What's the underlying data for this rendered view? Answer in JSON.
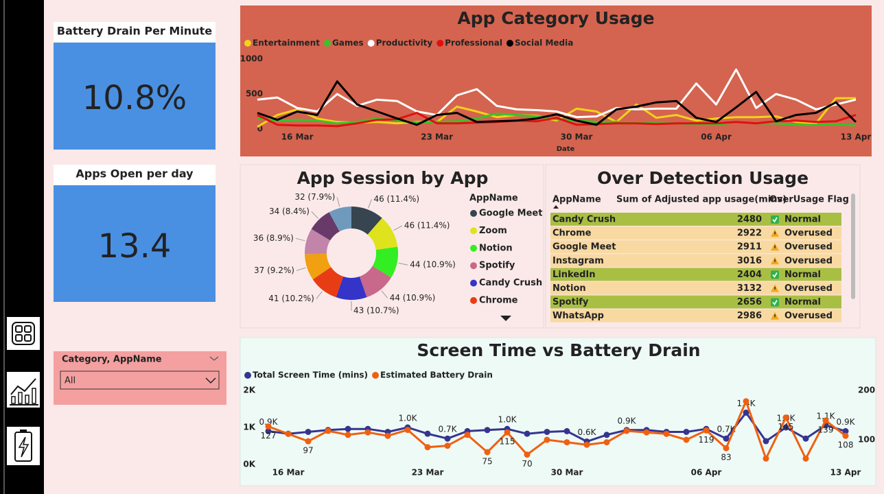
{
  "cards": [
    {
      "title": "Battery Drain Per Minute",
      "value": "10.8%"
    },
    {
      "title": "Apps Open per day",
      "value": "13.4"
    }
  ],
  "slicer": {
    "title": "Category, AppName",
    "selected": "All"
  },
  "table": {
    "title": "Over Detection Usage",
    "columns": [
      "AppName",
      "Sum of Adjusted app usage(mins)",
      "OverUsage Flag"
    ],
    "rows": [
      [
        "Candy Crush",
        "2480",
        "Normal"
      ],
      [
        "Chrome",
        "2922",
        "Overused"
      ],
      [
        "Google Meet",
        "2911",
        "Overused"
      ],
      [
        "Instagram",
        "3016",
        "Overused"
      ],
      [
        "LinkedIn",
        "2404",
        "Normal"
      ],
      [
        "Notion",
        "3132",
        "Overused"
      ],
      [
        "Spotify",
        "2656",
        "Normal"
      ],
      [
        "WhatsApp",
        "2986",
        "Overused"
      ]
    ]
  },
  "chart_data": [
    {
      "type": "line",
      "title": "App Category Usage",
      "x_label": "Date",
      "legend": "top-left",
      "categories": [
        null,
        null,
        "16 Mar",
        null,
        null,
        null,
        null,
        null,
        null,
        "23 Mar",
        null,
        null,
        null,
        null,
        null,
        null,
        "30 Mar",
        null,
        null,
        null,
        null,
        null,
        null,
        "06 Apr",
        null,
        null,
        null,
        null,
        null,
        null,
        "13 Apr"
      ],
      "ylim": [
        0,
        1000
      ],
      "yticks": [
        0,
        500,
        1000
      ],
      "series": [
        {
          "name": "Entertainment",
          "color": "#f2d21a",
          "values": [
            30,
            200,
            280,
            150,
            100,
            90,
            100,
            80,
            100,
            100,
            320,
            250,
            170,
            200,
            190,
            120,
            290,
            250,
            100,
            350,
            160,
            200,
            120,
            150,
            170,
            170,
            180,
            100,
            80,
            440,
            440
          ]
        },
        {
          "name": "Games",
          "color": "#35c42a",
          "values": [
            150,
            120,
            130,
            120,
            80,
            100,
            150,
            120,
            90,
            100,
            110,
            150,
            220,
            200,
            180,
            140,
            120,
            100,
            100,
            90,
            80,
            80,
            70,
            60,
            100,
            80,
            80,
            60,
            60,
            70,
            50
          ]
        },
        {
          "name": "Productivity",
          "color": "#ffffff",
          "values": [
            420,
            450,
            300,
            250,
            500,
            330,
            420,
            400,
            250,
            200,
            480,
            570,
            330,
            280,
            270,
            250,
            170,
            180,
            300,
            280,
            290,
            290,
            650,
            350,
            850,
            300,
            500,
            420,
            280,
            350,
            420
          ]
        },
        {
          "name": "Professional",
          "color": "#e01010",
          "values": [
            200,
            60,
            50,
            50,
            40,
            80,
            130,
            140,
            230,
            80,
            80,
            90,
            100,
            120,
            110,
            160,
            60,
            70,
            80,
            80,
            70,
            80,
            80,
            80,
            100,
            80,
            110,
            120,
            100,
            110,
            200
          ]
        },
        {
          "name": "Social Media",
          "color": "#000000",
          "values": [
            230,
            130,
            250,
            200,
            680,
            350,
            250,
            150,
            60,
            200,
            230,
            100,
            110,
            120,
            150,
            210,
            120,
            60,
            280,
            320,
            380,
            400,
            160,
            100,
            310,
            530,
            110,
            200,
            230,
            380,
            100
          ]
        }
      ]
    },
    {
      "type": "donut",
      "title": "App Session by App",
      "legend_title": "AppName",
      "categories": [
        "Google Meet",
        "Zoom",
        "Notion",
        "Spotify",
        "Candy Crush",
        "Chrome",
        null,
        null,
        null,
        null
      ],
      "values": [
        46,
        46,
        44,
        44,
        43,
        41,
        37,
        36,
        34,
        32
      ],
      "value_labels": [
        "46 (11.4%)",
        "46 (11.4%)",
        "44 (10.9%)",
        "44 (10.9%)",
        "43 (10.7%)",
        "41 (10.2%)",
        "37 (9.2%)",
        "36 (8.9%)",
        "34 (8.4%)",
        "32 (7.9%)"
      ],
      "colors": [
        "#36454f",
        "#dfe31d",
        "#33ee22",
        "#c8688a",
        "#3434c8",
        "#e83c14",
        "#f0a010",
        "#c384aa",
        "#683a6a",
        "#6f9abc"
      ]
    },
    {
      "type": "line",
      "title": "Screen Time vs Battery Drain",
      "legend": "top-left",
      "categories": [
        null,
        "16 Mar",
        null,
        null,
        null,
        null,
        null,
        null,
        "23 Mar",
        null,
        null,
        null,
        null,
        null,
        null,
        "30 Mar",
        null,
        null,
        null,
        null,
        null,
        null,
        "06 Apr",
        null,
        null,
        null,
        null,
        null,
        null,
        "13 Apr"
      ],
      "ylim": [
        0,
        2000
      ],
      "yticks": [
        {
          "value": 0,
          "label": "0K"
        },
        {
          "value": 1000,
          "label": "1K"
        },
        {
          "value": 2000,
          "label": "2K"
        }
      ],
      "y2lim": [
        50,
        200
      ],
      "y2ticks": [
        100,
        200
      ],
      "series": [
        {
          "name": "Total Screen Time (mins)",
          "color": "#35358f",
          "values": [
            900,
            830,
            880,
            930,
            960,
            960,
            880,
            1000,
            830,
            700,
            900,
            930,
            960,
            830,
            880,
            900,
            620,
            800,
            930,
            930,
            880,
            880,
            960,
            700,
            1400,
            630,
            1000,
            700,
            1060,
            900
          ],
          "value_labels": [
            "0.9K",
            null,
            null,
            null,
            null,
            null,
            null,
            "1.0K",
            null,
            "0.7K",
            null,
            null,
            "1.0K",
            null,
            null,
            null,
            "0.6K",
            null,
            "0.9K",
            null,
            null,
            null,
            null,
            "0.7K",
            "1.4K",
            null,
            "1.0K",
            null,
            "1.1K",
            "0.9K"
          ]
        },
        {
          "name": "Estimated Battery Drain",
          "color": "#f06010",
          "axis": "y2",
          "values": [
            127,
            112,
            97,
            118,
            110,
            115,
            108,
            120,
            85,
            88,
            110,
            75,
            115,
            70,
            100,
            95,
            90,
            95,
            118,
            115,
            112,
            100,
            119,
            83,
            178,
            62,
            145,
            62,
            139,
            108
          ],
          "value_labels": [
            "127",
            null,
            "97",
            null,
            null,
            null,
            null,
            null,
            null,
            null,
            null,
            "75",
            "115",
            "70",
            null,
            null,
            null,
            null,
            null,
            null,
            null,
            null,
            "119",
            "83",
            null,
            null,
            "145",
            null,
            "139",
            "108"
          ]
        }
      ]
    }
  ]
}
